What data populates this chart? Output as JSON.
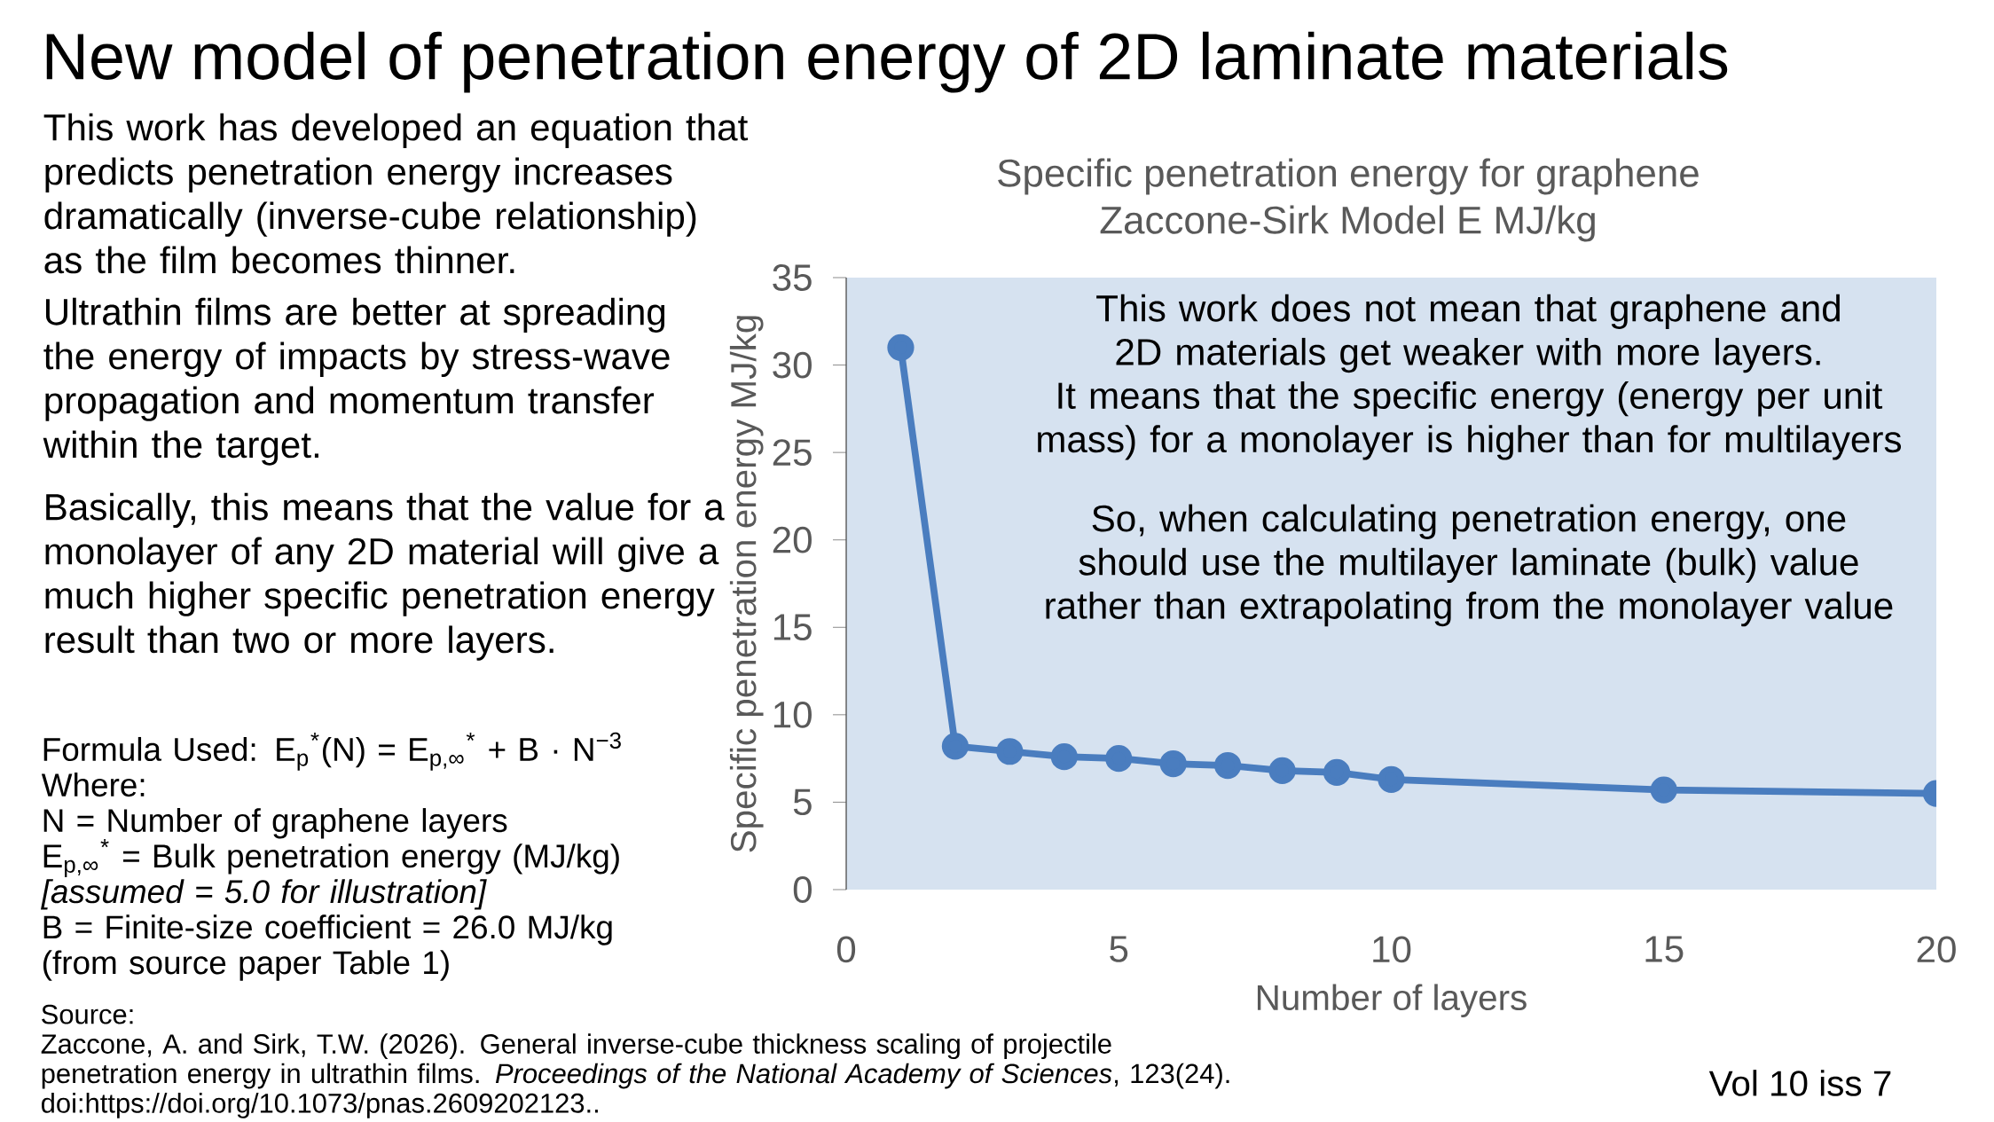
{
  "chart_data": {
    "type": "line",
    "title": "New model of penetration energy of 2D laminate materials",
    "subtitle": "Specific penetration energy for graphene",
    "xlabel": "Number of layers",
    "ylabel": "Specific penetration energy MJ/kg",
    "x": [
      1,
      2,
      3,
      4,
      5,
      6,
      7,
      8,
      9,
      10,
      15,
      20
    ],
    "values": [
      31,
      8.2,
      7.9,
      7.6,
      7.5,
      7.2,
      7.1,
      6.8,
      6.7,
      6.3,
      5.7,
      5.5
    ],
    "color": "#4a7dbf",
    "marker": "circle",
    "line_style": "solid",
    "xlim": [
      0,
      20
    ],
    "ylim": [
      0,
      35
    ],
    "xticks": [
      0,
      5,
      10,
      15,
      20
    ],
    "yticks": [
      0,
      5,
      10,
      15,
      20,
      25,
      30,
      35
    ],
    "annotations": [
      "Zaccone-Sirk Model E MJ/kg",
      "This work has developed an equation that predicts penetration energy increases dramatically (inverse-cube relationship) as the film becomes thinner.",
      "Ultrathin films are better at spreading the energy of impacts by stress-wave propagation and momentum transfer within the target.",
      "Basically, this means that the value for a monolayer of any 2D material will give a much higher specific penetration energy result than two or more layers.",
      "Formula Used: E$_{p}$$^{*}$(N) = E$_{p,∞}$$^{*}$ + B · N$^{−3}$",
      "Where:",
      "N = Number of graphene layers",
      "E$_{p,∞}$$^{*}$ = Bulk penetration energy (MJ/kg) *[assumed = 5.0 for illustration]*",
      "B = Finite-size coefficient = 26.0 MJ/kg",
      "(from source paper Table 1)",
      "This work does not mean that graphene and 2D materials get weaker with more layers.",
      "It means that the specific energy (energy per unit mass) for a monolayer is higher than for multilayers",
      "So, when calculating penetration energy, one should use the multilayer laminate (bulk) value rather than extrapolating from the monolayer value",
      "Source:",
      "Zaccone, A. and Sirk, T.W. (2026). General inverse-cube thickness scaling of projectile penetration energy in ultrathin films. *Proceedings of the National Academy of Sciences*, 123(24). doi:https://doi.org/10.1073/pnas.2609202123..",
      "Vol 10  iss 7"
    ]
  }
}
